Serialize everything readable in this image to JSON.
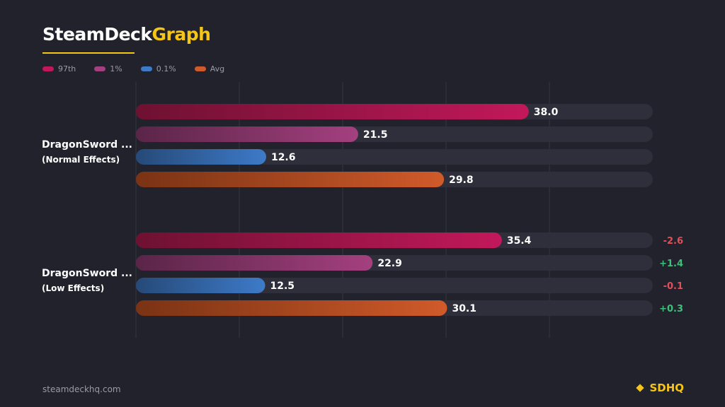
{
  "brand": {
    "title_part1": "SteamDeck",
    "title_part2": "Graph"
  },
  "legend": [
    {
      "label": "97th",
      "color": "#c2185b"
    },
    {
      "label": "1%",
      "color": "#a4407f"
    },
    {
      "label": "0.1%",
      "color": "#3d7ac8"
    },
    {
      "label": "Avg",
      "color": "#d05a2a"
    }
  ],
  "footer": {
    "url": "steamdeckhq.com",
    "logo": "SDHQ"
  },
  "colors": {
    "background": "#21222b",
    "accent": "#f5c518",
    "positive": "#3ec07a",
    "negative": "#e0505a"
  },
  "chart_data": {
    "type": "bar",
    "orientation": "horizontal",
    "xlim": [
      0,
      50
    ],
    "grid": true,
    "groups": [
      {
        "name": "DragonSword ...",
        "subtitle": "(Normal Effects)",
        "values": [
          "38.0",
          "21.5",
          "12.6",
          "29.8"
        ],
        "deltas": [
          "",
          "",
          "",
          ""
        ]
      },
      {
        "name": "DragonSword ...",
        "subtitle": "(Low Effects)",
        "values": [
          "35.4",
          "22.9",
          "12.5",
          "30.1"
        ],
        "deltas": [
          "-2.6",
          "+1.4",
          "-0.1",
          "+0.3"
        ]
      }
    ],
    "series": [
      {
        "name": "97th",
        "color_start": "#6e1131",
        "color_end": "#c2185b"
      },
      {
        "name": "1%",
        "color_start": "#5a2548",
        "color_end": "#a4407f"
      },
      {
        "name": "0.1%",
        "color_start": "#264a78",
        "color_end": "#3d7ac8"
      },
      {
        "name": "Avg",
        "color_start": "#7a3314",
        "color_end": "#d05a2a"
      }
    ]
  }
}
